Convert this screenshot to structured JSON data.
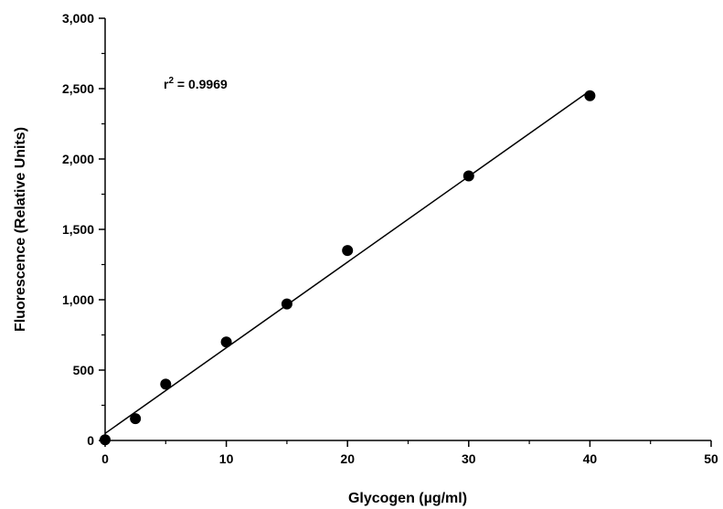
{
  "chart_data": {
    "type": "scatter",
    "title": "",
    "xlabel": "Glycogen (µg/ml)",
    "ylabel": "Fluorescence (Relative Units)",
    "xlim": [
      0,
      50
    ],
    "ylim": [
      0,
      3000
    ],
    "x_ticks": [
      0,
      10,
      20,
      30,
      40,
      50
    ],
    "x_tick_labels": [
      "0",
      "10",
      "20",
      "30",
      "40",
      "50"
    ],
    "y_ticks": [
      0,
      500,
      1000,
      1500,
      2000,
      2500,
      3000
    ],
    "y_tick_labels": [
      "0",
      "500",
      "1,000",
      "1,500",
      "2,000",
      "2,500",
      "3,000"
    ],
    "series": [
      {
        "x": [
          0,
          2.5,
          5,
          10,
          15,
          20,
          30,
          40
        ],
        "y": [
          5,
          155,
          400,
          700,
          970,
          1350,
          1880,
          2450
        ]
      }
    ],
    "fit_line": {
      "x": [
        0,
        40
      ],
      "y": [
        50,
        2485
      ]
    },
    "annotation": {
      "prefix": "r",
      "superscript": "2",
      "text": " = 0.9969"
    },
    "grid": false,
    "legend": "none"
  }
}
